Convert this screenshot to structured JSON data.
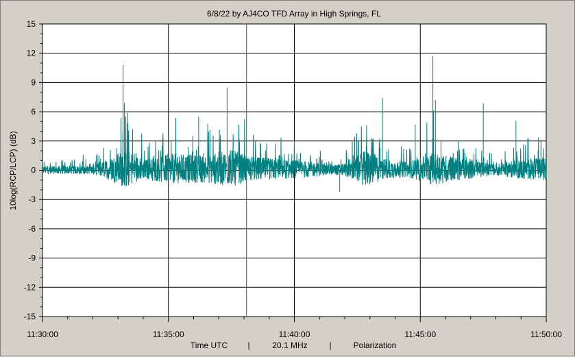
{
  "chart_data": {
    "type": "line",
    "title": "6/8/22  by  AJ4CO TFD Array  in  High Springs, FL",
    "ylabel": "10log(RCP/LCP)  (dB)",
    "xlabel_parts": [
      "Time UTC",
      "|",
      "20.1 MHz",
      "|",
      "Polarization"
    ],
    "ylim": [
      -15,
      15
    ],
    "yticks": [
      15,
      12,
      9,
      6,
      3,
      0,
      -3,
      -6,
      -9,
      -12,
      -15
    ],
    "ytick_labels": [
      "15",
      "12",
      "9",
      "6",
      "3",
      "0",
      "-3",
      "-6",
      "-9",
      "-12",
      "-15"
    ],
    "xlim_minutes": [
      0,
      20
    ],
    "xticks_minutes": [
      0,
      5,
      10,
      15,
      20
    ],
    "xtick_labels": [
      "11:30:00",
      "11:35:00",
      "11:40:00",
      "11:45:00",
      "11:50:00"
    ],
    "grid": true,
    "series": [
      {
        "color": "#008080",
        "baseline_db": 0,
        "envelope": [
          {
            "t": 0.0,
            "amp": 0.6
          },
          {
            "t": 2.0,
            "amp": 0.7
          },
          {
            "t": 2.6,
            "amp": 1.6
          },
          {
            "t": 3.3,
            "amp": 3.2
          },
          {
            "t": 4.0,
            "amp": 1.5
          },
          {
            "t": 5.0,
            "amp": 2.4
          },
          {
            "t": 6.5,
            "amp": 2.2
          },
          {
            "t": 7.5,
            "amp": 3.0
          },
          {
            "t": 8.2,
            "amp": 2.0
          },
          {
            "t": 9.5,
            "amp": 1.6
          },
          {
            "t": 10.5,
            "amp": 1.3
          },
          {
            "t": 11.5,
            "amp": 0.8
          },
          {
            "t": 12.0,
            "amp": 1.0
          },
          {
            "t": 12.9,
            "amp": 3.0
          },
          {
            "t": 13.6,
            "amp": 1.6
          },
          {
            "t": 14.5,
            "amp": 1.2
          },
          {
            "t": 15.5,
            "amp": 2.6
          },
          {
            "t": 16.5,
            "amp": 1.8
          },
          {
            "t": 18.0,
            "amp": 0.9
          },
          {
            "t": 19.0,
            "amp": 1.6
          },
          {
            "t": 20.0,
            "amp": 1.8
          }
        ],
        "spikes": [
          {
            "t": 3.2,
            "db": 10.8
          },
          {
            "t": 3.25,
            "db": 6.9
          },
          {
            "t": 7.33,
            "db": 8.5
          },
          {
            "t": 8.1,
            "db": 15.0
          },
          {
            "t": 8.1,
            "db": -15.0
          },
          {
            "t": 6.2,
            "db": 5.5
          },
          {
            "t": 13.5,
            "db": 7.4
          },
          {
            "t": 15.5,
            "db": 11.7
          },
          {
            "t": 15.6,
            "db": 7.2
          },
          {
            "t": 17.5,
            "db": 6.9
          },
          {
            "t": 14.8,
            "db": 4.7
          },
          {
            "t": 18.8,
            "db": 5.1
          },
          {
            "t": 11.8,
            "db": -2.2
          }
        ]
      }
    ]
  }
}
